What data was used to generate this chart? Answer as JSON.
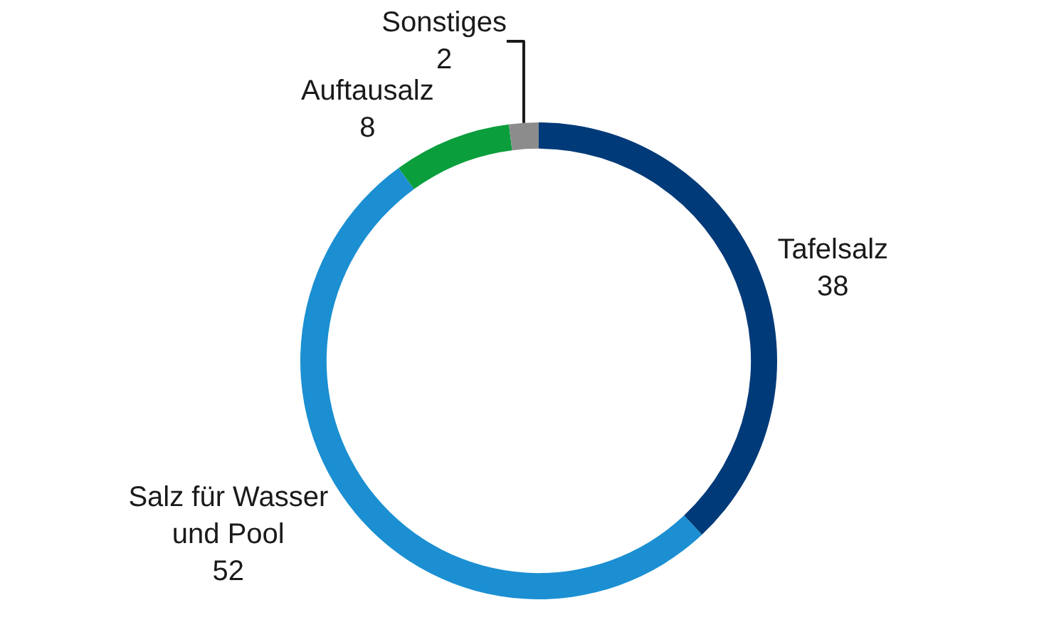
{
  "chart_data": {
    "type": "donut",
    "categories": [
      "Tafelsalz",
      "Salz für Wasser\nund Pool",
      "Auftausalz",
      "Sonstiges"
    ],
    "values": [
      38,
      52,
      8,
      2
    ],
    "colors": [
      "#003a78",
      "#1b8fd2",
      "#0a9e3c",
      "#8c8c8c"
    ],
    "data_labels": true,
    "legend": false
  }
}
